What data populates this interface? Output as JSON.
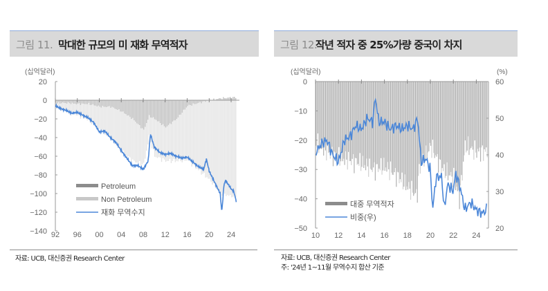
{
  "figures": [
    {
      "label": "그림 11.",
      "title": "막대한 규모의 미 재화 무역적자",
      "unit_left": "(십억달러)",
      "source": "자료: UCB, 대신증권 Research Center"
    },
    {
      "label": "그림 12.",
      "title": "작년 적자 중 25%가량 중국이 차지",
      "unit_left": "(십억달러)",
      "unit_right": "(%)",
      "source": "자료: UCB, 대신증권 Research Center",
      "note": "주: '24년 1~11월 무역수지 합산 기준"
    }
  ],
  "colors": {
    "petroleum": "#8c8c8c",
    "non_petroleum": "#c8c8c8",
    "line": "#4a86d8",
    "china_bar": "#a6a6a6",
    "header_bg": "#d9d9d9",
    "header_border": "#8eaadb"
  },
  "chart_data": [
    {
      "type": "bar",
      "title": "막대한 규모의 미 재화 무역적자",
      "ylabel": "(십억달러)",
      "ylim": [
        -140,
        20
      ],
      "yticks": [
        20,
        0,
        -20,
        -40,
        -60,
        -80,
        -100,
        -120,
        -140
      ],
      "xticks": [
        "92",
        "96",
        "00",
        "04",
        "08",
        "12",
        "16",
        "20",
        "24"
      ],
      "x_range": [
        1992,
        2025
      ],
      "legend": [
        "Petroleum",
        "Non Petroleum",
        "재화 무역수지"
      ],
      "legend_position": "inside lower-left",
      "series": [
        {
          "name": "Petroleum",
          "kind": "stacked-bar",
          "x": [
            1992,
            1994,
            1996,
            1998,
            2000,
            2002,
            2004,
            2006,
            2008,
            2009,
            2010,
            2012,
            2014,
            2016,
            2018,
            2020,
            2022,
            2024
          ],
          "values": [
            -3,
            -3,
            -4,
            -4,
            -7,
            -7,
            -12,
            -20,
            -32,
            -17,
            -20,
            -29,
            -20,
            -6,
            -3,
            0,
            2,
            3
          ]
        },
        {
          "name": "Non Petroleum",
          "kind": "stacked-bar",
          "x": [
            1992,
            1994,
            1996,
            1998,
            2000,
            2002,
            2004,
            2006,
            2008,
            2009,
            2010,
            2012,
            2014,
            2016,
            2018,
            2020,
            2022,
            2024
          ],
          "values": [
            -4,
            -9,
            -12,
            -17,
            -25,
            -34,
            -43,
            -45,
            -37,
            -22,
            -40,
            -36,
            -45,
            -58,
            -72,
            -85,
            -100,
            -103
          ]
        },
        {
          "name": "재화 무역수지",
          "kind": "line",
          "x": [
            1992,
            1993,
            1994,
            1995,
            1996,
            1997,
            1998,
            1999,
            2000,
            2001,
            2002,
            2003,
            2004,
            2005,
            2006,
            2007,
            2008,
            2008.9,
            2009.3,
            2010,
            2011,
            2012,
            2013,
            2014,
            2015,
            2016,
            2017,
            2018,
            2019,
            2019.5,
            2020,
            2021,
            2022,
            2022.3,
            2022.7,
            2023,
            2024,
            2024.5,
            2024.9
          ],
          "values": [
            -6,
            -9,
            -11,
            -14,
            -13,
            -16,
            -19,
            -24,
            -34,
            -33,
            -40,
            -45,
            -54,
            -62,
            -70,
            -70,
            -74,
            -65,
            -36,
            -50,
            -56,
            -58,
            -57,
            -60,
            -62,
            -61,
            -66,
            -71,
            -74,
            -63,
            -76,
            -88,
            -100,
            -120,
            -90,
            -86,
            -95,
            -98,
            -108
          ]
        }
      ]
    },
    {
      "type": "bar",
      "title": "작년 적자 중 25%가량 중국이 차지",
      "ylabel": "(십억달러)",
      "ylabel_right": "(%)",
      "ylim": [
        -50,
        0
      ],
      "ylim_right": [
        20,
        60
      ],
      "yticks": [
        0,
        -10,
        -20,
        -30,
        -40,
        -50
      ],
      "yticks_right": [
        60,
        50,
        40,
        30,
        20
      ],
      "xticks": [
        "10",
        "12",
        "14",
        "16",
        "18",
        "20",
        "22",
        "24"
      ],
      "x_range": [
        2010,
        2025
      ],
      "legend": [
        "대중 무역적자",
        "비중(우)"
      ],
      "legend_position": "inside lower-left",
      "series": [
        {
          "name": "대중 무역적자",
          "kind": "bar",
          "x": [
            2010,
            2011,
            2012,
            2013,
            2014,
            2015,
            2016,
            2017,
            2018,
            2018.8,
            2019,
            2020,
            2021,
            2022,
            2022.5,
            2023,
            2024
          ],
          "values": [
            -21,
            -24,
            -26,
            -27,
            -28,
            -30,
            -29,
            -32,
            -36,
            -39,
            -30,
            -22,
            -30,
            -33,
            -40,
            -22,
            -24
          ]
        },
        {
          "name": "비중(우)",
          "kind": "line",
          "axis": "right",
          "x": [
            2010.1,
            2010.5,
            2011,
            2011.5,
            2012,
            2012.5,
            2013,
            2013.5,
            2014,
            2014.5,
            2015,
            2015.2,
            2015.5,
            2016,
            2016.5,
            2017,
            2017.5,
            2018,
            2018.5,
            2018.9,
            2019.2,
            2019.6,
            2020,
            2020.2,
            2020.5,
            2021,
            2021.2,
            2021.5,
            2022,
            2022.2,
            2022.6,
            2023,
            2023.5,
            2024,
            2024.5,
            2024.9
          ],
          "values": [
            41,
            43,
            44,
            40,
            38,
            44,
            45,
            48,
            47,
            50,
            49,
            56,
            49,
            49,
            47,
            48,
            47,
            48,
            47,
            50,
            38,
            39,
            36,
            25,
            34,
            34,
            25,
            32,
            30,
            35,
            31,
            25,
            27,
            25,
            24,
            25
          ]
        }
      ]
    }
  ]
}
